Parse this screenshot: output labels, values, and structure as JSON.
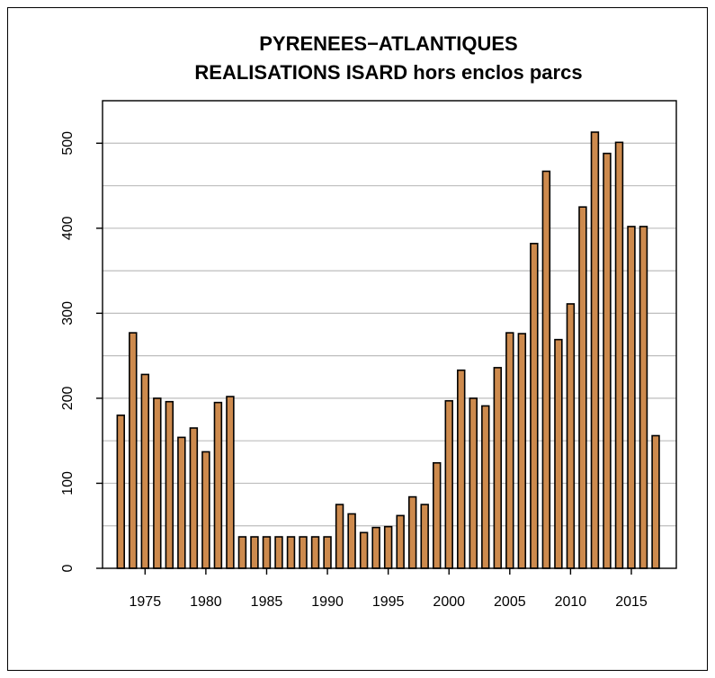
{
  "chart_data": {
    "type": "bar",
    "title": "PYRENEES−ATLANTIQUES",
    "subtitle": "REALISATIONS ISARD hors enclos parcs",
    "xlabel": "",
    "ylabel": "",
    "x": [
      1973,
      1974,
      1975,
      1976,
      1977,
      1978,
      1979,
      1980,
      1981,
      1982,
      1983,
      1984,
      1985,
      1986,
      1987,
      1988,
      1989,
      1990,
      1991,
      1992,
      1993,
      1994,
      1995,
      1996,
      1997,
      1998,
      1999,
      2000,
      2001,
      2002,
      2003,
      2004,
      2005,
      2006,
      2007,
      2008,
      2009,
      2010,
      2011,
      2012,
      2013,
      2014,
      2015,
      2016,
      2017
    ],
    "values": [
      180,
      277,
      228,
      200,
      196,
      154,
      165,
      137,
      195,
      202,
      37,
      37,
      37,
      37,
      37,
      37,
      37,
      37,
      75,
      64,
      42,
      48,
      49,
      62,
      84,
      75,
      124,
      197,
      233,
      200,
      191,
      236,
      277,
      276,
      382,
      467,
      269,
      311,
      425,
      513,
      488,
      501,
      402,
      402,
      156
    ],
    "x_tick_labels": [
      "1975",
      "1980",
      "1985",
      "1990",
      "1995",
      "2000",
      "2005",
      "2010",
      "2015"
    ],
    "x_tick_values": [
      1975,
      1980,
      1985,
      1990,
      1995,
      2000,
      2005,
      2010,
      2015
    ],
    "y_tick_labels": [
      "0",
      "100",
      "200",
      "300",
      "400",
      "500"
    ],
    "y_tick_values": [
      0,
      100,
      200,
      300,
      400,
      500
    ],
    "xlim": [
      1971.5,
      2018.7
    ],
    "ylim": [
      0,
      550
    ],
    "grid": true,
    "grid_step": 50,
    "legend": "none",
    "colors": {
      "bar_fill": "#cd8a4d",
      "bar_stroke": "#000000",
      "grid": "#bebebe",
      "axis": "#000000",
      "background": "#ffffff"
    }
  }
}
